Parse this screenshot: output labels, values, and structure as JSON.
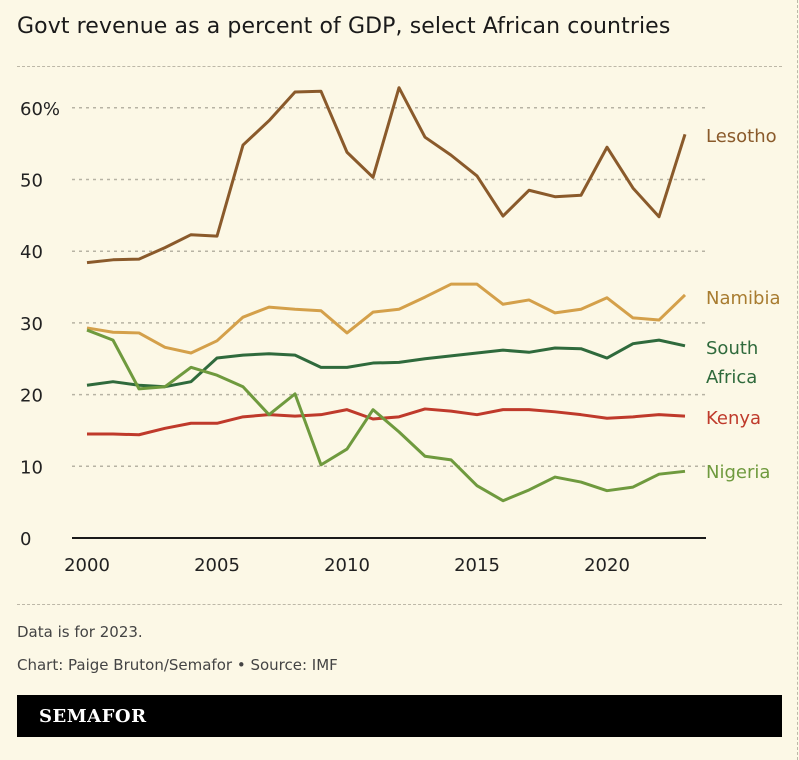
{
  "chart_data": {
    "type": "line",
    "title": "Govt revenue as a percent of GDP, select African countries",
    "xlabel": "",
    "ylabel": "",
    "xlim": [
      2000,
      2023
    ],
    "ylim": [
      0,
      65
    ],
    "grid": true,
    "legend": "direct labels at line ends (right)",
    "x_ticks": [
      "2000",
      "2005",
      "2010",
      "2015",
      "2020"
    ],
    "y_ticks": [
      "0",
      "10",
      "20",
      "30",
      "40",
      "50",
      "60%"
    ],
    "x": [
      2000,
      2001,
      2002,
      2003,
      2004,
      2005,
      2006,
      2007,
      2008,
      2009,
      2010,
      2011,
      2012,
      2013,
      2014,
      2015,
      2016,
      2017,
      2018,
      2019,
      2020,
      2021,
      2022,
      2023
    ],
    "series": [
      {
        "name": "Lesotho",
        "color": "#8a5a2b",
        "label_lines": [
          "Lesotho"
        ],
        "values": [
          38.4,
          38.8,
          38.9,
          40.5,
          42.3,
          42.1,
          54.8,
          58.2,
          62.2,
          62.3,
          53.8,
          50.3,
          62.8,
          55.9,
          53.4,
          50.5,
          44.9,
          48.5,
          47.6,
          47.8,
          54.5,
          48.8,
          44.8,
          56.3
        ]
      },
      {
        "name": "Namibia",
        "color": "#d4a04a",
        "label_color": "#a87c30",
        "label_lines": [
          "Namibia"
        ],
        "values": [
          29.3,
          28.7,
          28.6,
          26.6,
          25.8,
          27.5,
          30.8,
          32.2,
          31.9,
          31.7,
          28.6,
          31.5,
          31.9,
          33.6,
          35.4,
          35.4,
          32.6,
          33.2,
          31.4,
          31.9,
          33.5,
          30.7,
          30.4,
          33.9
        ]
      },
      {
        "name": "South Africa",
        "color": "#2f6a3c",
        "label_lines": [
          "South",
          "Africa"
        ],
        "values": [
          21.3,
          21.8,
          21.3,
          21.1,
          21.8,
          25.1,
          25.5,
          25.7,
          25.5,
          23.8,
          23.8,
          24.4,
          24.5,
          25.0,
          25.4,
          25.8,
          26.2,
          25.9,
          26.5,
          26.4,
          25.1,
          27.1,
          27.6,
          26.8
        ]
      },
      {
        "name": "Kenya",
        "color": "#bf3a2b",
        "label_lines": [
          "Kenya"
        ],
        "values": [
          14.5,
          14.5,
          14.4,
          15.3,
          16.0,
          16.0,
          16.9,
          17.2,
          17.0,
          17.2,
          17.9,
          16.6,
          16.9,
          18.0,
          17.7,
          17.2,
          17.9,
          17.9,
          17.6,
          17.2,
          16.7,
          16.9,
          17.2,
          17.0
        ]
      },
      {
        "name": "Nigeria",
        "color": "#6f9a3e",
        "label_lines": [
          "Nigeria"
        ],
        "values": [
          29.0,
          27.6,
          20.8,
          21.1,
          23.8,
          22.7,
          21.1,
          17.2,
          20.1,
          10.2,
          12.4,
          17.9,
          14.8,
          11.4,
          10.9,
          7.3,
          5.2,
          6.7,
          8.5,
          7.8,
          6.6,
          7.1,
          8.9,
          9.3
        ]
      }
    ]
  },
  "footer": {
    "note": "Data is for 2023.",
    "credit": "Chart: Paige Bruton/Semafor • Source: IMF",
    "logo": "SEMAFOR"
  },
  "colors": {
    "background": "#fcf8e6",
    "banner": "#000000"
  }
}
